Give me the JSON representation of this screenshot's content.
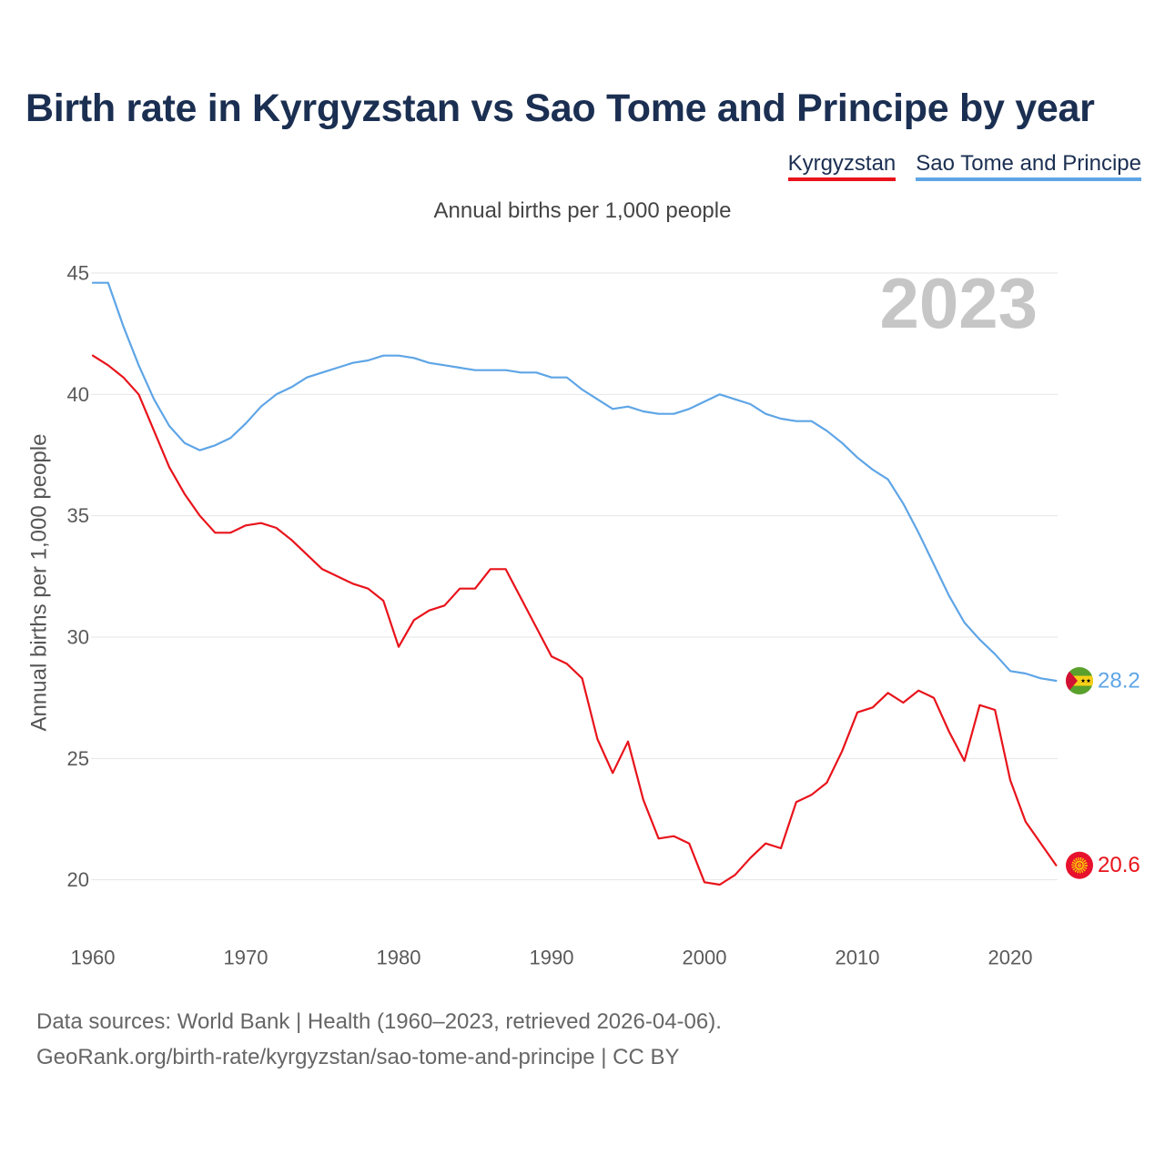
{
  "chart_data": {
    "type": "line",
    "title": "Birth rate in Kyrgyzstan vs Sao Tome and Principe by year",
    "subtitle": "Annual births per 1,000 people",
    "xlabel": "",
    "ylabel": "Annual births per 1,000 people",
    "current_year_label": "2023",
    "xlim": [
      1960,
      2023
    ],
    "ylim": [
      20,
      45
    ],
    "xticks": [
      1960,
      1970,
      1980,
      1990,
      2000,
      2010,
      2020
    ],
    "yticks": [
      20,
      25,
      30,
      35,
      40,
      45
    ],
    "grid": true,
    "legend_position": "top-right",
    "x": [
      1960,
      1961,
      1962,
      1963,
      1964,
      1965,
      1966,
      1967,
      1968,
      1969,
      1970,
      1971,
      1972,
      1973,
      1974,
      1975,
      1976,
      1977,
      1978,
      1979,
      1980,
      1981,
      1982,
      1983,
      1984,
      1985,
      1986,
      1987,
      1988,
      1989,
      1990,
      1991,
      1992,
      1993,
      1994,
      1995,
      1996,
      1997,
      1998,
      1999,
      2000,
      2001,
      2002,
      2003,
      2004,
      2005,
      2006,
      2007,
      2008,
      2009,
      2010,
      2011,
      2012,
      2013,
      2014,
      2015,
      2016,
      2017,
      2018,
      2019,
      2020,
      2021,
      2022,
      2023
    ],
    "series": [
      {
        "name": "Kyrgyzstan",
        "color": "#e8131b",
        "flag_icon": "kyrgyzstan-flag-icon",
        "end_label": "20.6",
        "values": [
          41.6,
          41.2,
          40.7,
          40.0,
          38.5,
          37.0,
          35.9,
          35.0,
          34.3,
          34.3,
          34.6,
          34.7,
          34.5,
          34.0,
          33.4,
          32.8,
          32.5,
          32.2,
          32.0,
          31.5,
          29.6,
          30.7,
          31.1,
          31.3,
          32.0,
          32.0,
          32.8,
          32.8,
          31.6,
          30.4,
          29.2,
          28.9,
          28.3,
          25.8,
          24.4,
          25.7,
          23.3,
          21.7,
          21.8,
          21.5,
          19.9,
          19.8,
          20.2,
          20.9,
          21.5,
          21.3,
          23.2,
          23.5,
          24.0,
          25.3,
          26.9,
          27.1,
          27.7,
          27.3,
          27.8,
          27.5,
          26.1,
          24.9,
          27.2,
          27.0,
          24.1,
          22.4,
          21.5,
          20.6
        ]
      },
      {
        "name": "Sao Tome and Principe",
        "color": "#5ea5e6",
        "flag_icon": "sao-tome-and-principe-flag-icon",
        "end_label": "28.2",
        "values": [
          44.6,
          44.6,
          42.8,
          41.2,
          39.8,
          38.7,
          38.0,
          37.7,
          37.9,
          38.2,
          38.8,
          39.5,
          40.0,
          40.3,
          40.7,
          40.9,
          41.1,
          41.3,
          41.4,
          41.6,
          41.6,
          41.5,
          41.3,
          41.2,
          41.1,
          41.0,
          41.0,
          41.0,
          40.9,
          40.9,
          40.7,
          40.7,
          40.2,
          39.8,
          39.4,
          39.5,
          39.3,
          39.2,
          39.2,
          39.4,
          39.7,
          40.0,
          39.8,
          39.6,
          39.2,
          39.0,
          38.9,
          38.9,
          38.5,
          38.0,
          37.4,
          36.9,
          36.5,
          35.5,
          34.3,
          33.0,
          31.7,
          30.6,
          29.9,
          29.3,
          28.6,
          28.5,
          28.3,
          28.2
        ]
      }
    ]
  },
  "footer": {
    "sources": "Data sources: World Bank | Health (1960–2023, retrieved 2026-04-06).",
    "credit": "GeoRank.org/birth-rate/kyrgyzstan/sao-tome-and-principe | CC BY"
  }
}
